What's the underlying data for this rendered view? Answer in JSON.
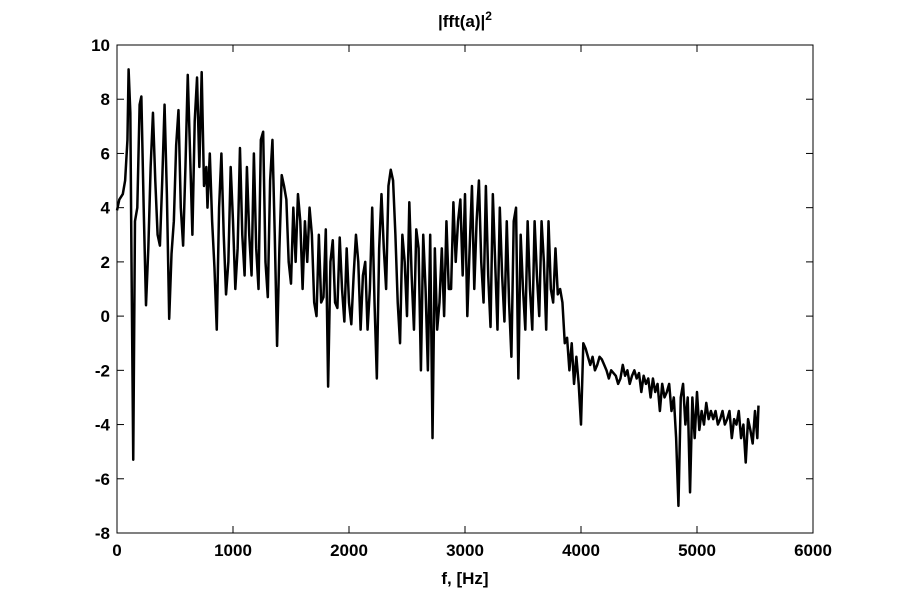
{
  "chart_data": {
    "type": "line",
    "title": "|fft(a)|",
    "title_superscript": "2",
    "x_label": "f, [Hz]",
    "color": "#000000",
    "xlim": [
      0,
      6000
    ],
    "xticks": [
      0,
      1000,
      2000,
      3000,
      4000,
      5000,
      6000
    ],
    "ylim": [
      -8,
      10
    ],
    "yticks": [
      -8,
      -6,
      -4,
      -2,
      0,
      2,
      4,
      6,
      8,
      10
    ],
    "grid": false,
    "x": [
      0,
      20,
      50,
      70,
      90,
      100,
      115,
      125,
      140,
      155,
      175,
      195,
      210,
      230,
      250,
      270,
      290,
      310,
      330,
      350,
      370,
      390,
      410,
      430,
      450,
      470,
      490,
      510,
      530,
      550,
      570,
      590,
      610,
      630,
      650,
      670,
      690,
      710,
      730,
      750,
      770,
      780,
      800,
      820,
      840,
      860,
      880,
      900,
      920,
      940,
      960,
      980,
      1000,
      1020,
      1040,
      1060,
      1080,
      1100,
      1120,
      1140,
      1160,
      1180,
      1200,
      1220,
      1240,
      1260,
      1280,
      1300,
      1320,
      1340,
      1360,
      1380,
      1400,
      1420,
      1440,
      1460,
      1480,
      1500,
      1520,
      1540,
      1560,
      1580,
      1600,
      1620,
      1640,
      1660,
      1680,
      1700,
      1720,
      1740,
      1760,
      1780,
      1800,
      1820,
      1840,
      1860,
      1880,
      1900,
      1920,
      1940,
      1960,
      1980,
      2000,
      2020,
      2040,
      2060,
      2080,
      2100,
      2120,
      2140,
      2160,
      2180,
      2200,
      2220,
      2240,
      2260,
      2280,
      2300,
      2320,
      2340,
      2360,
      2380,
      2400,
      2420,
      2440,
      2460,
      2480,
      2500,
      2520,
      2540,
      2560,
      2580,
      2600,
      2620,
      2640,
      2660,
      2680,
      2700,
      2720,
      2740,
      2760,
      2780,
      2800,
      2820,
      2840,
      2860,
      2880,
      2900,
      2920,
      2940,
      2960,
      2980,
      3000,
      3020,
      3040,
      3060,
      3080,
      3100,
      3120,
      3140,
      3160,
      3180,
      3200,
      3220,
      3240,
      3260,
      3280,
      3300,
      3320,
      3340,
      3360,
      3380,
      3400,
      3420,
      3440,
      3460,
      3480,
      3500,
      3520,
      3540,
      3560,
      3580,
      3600,
      3620,
      3640,
      3660,
      3680,
      3700,
      3720,
      3740,
      3760,
      3780,
      3800,
      3820,
      3840,
      3860,
      3880,
      3900,
      3920,
      3940,
      3960,
      3980,
      4000,
      4020,
      4040,
      4060,
      4080,
      4100,
      4120,
      4140,
      4160,
      4180,
      4200,
      4220,
      4240,
      4260,
      4280,
      4300,
      4320,
      4340,
      4360,
      4380,
      4400,
      4420,
      4440,
      4460,
      4480,
      4500,
      4520,
      4540,
      4560,
      4580,
      4600,
      4620,
      4640,
      4660,
      4680,
      4700,
      4720,
      4740,
      4760,
      4780,
      4800,
      4820,
      4840,
      4860,
      4880,
      4900,
      4920,
      4940,
      4960,
      4980,
      5000,
      5020,
      5040,
      5060,
      5080,
      5100,
      5120,
      5140,
      5160,
      5180,
      5200,
      5220,
      5240,
      5260,
      5280,
      5300,
      5320,
      5340,
      5360,
      5380,
      5400,
      5420,
      5440,
      5460,
      5480,
      5500,
      5520,
      5530
    ],
    "values": [
      3.9,
      4.3,
      4.5,
      5.0,
      6.5,
      9.1,
      7.5,
      2.0,
      -5.3,
      3.5,
      4.0,
      7.8,
      8.1,
      4.0,
      0.4,
      2.5,
      5.5,
      7.5,
      5.0,
      3.0,
      2.6,
      5.0,
      7.8,
      4.5,
      -0.1,
      2.3,
      3.5,
      6.3,
      7.6,
      4.0,
      2.6,
      5.5,
      8.9,
      6.0,
      3.0,
      7.2,
      8.8,
      5.5,
      9.0,
      4.8,
      5.5,
      4.0,
      6.0,
      3.5,
      1.8,
      -0.5,
      4.0,
      6.0,
      3.0,
      0.8,
      2.0,
      5.5,
      3.5,
      1.0,
      2.5,
      6.2,
      3.0,
      1.5,
      5.5,
      3.0,
      1.5,
      6.0,
      2.5,
      1.0,
      6.5,
      6.8,
      2.0,
      0.7,
      5.0,
      6.5,
      3.0,
      -1.1,
      2.5,
      5.2,
      4.8,
      4.3,
      2.0,
      1.2,
      4.0,
      2.0,
      4.5,
      3.5,
      1.0,
      3.5,
      2.0,
      4.0,
      3.0,
      0.5,
      0.0,
      3.0,
      0.5,
      0.7,
      3.2,
      -2.6,
      2.0,
      2.8,
      0.5,
      0.3,
      2.9,
      1.0,
      -0.2,
      2.5,
      0.5,
      -0.3,
      1.5,
      3.0,
      2.0,
      -0.5,
      1.5,
      2.0,
      -0.5,
      1.0,
      4.0,
      0.5,
      -2.3,
      2.5,
      4.5,
      2.5,
      1.0,
      4.8,
      5.4,
      5.0,
      3.0,
      0.5,
      -1.0,
      3.0,
      2.0,
      0.0,
      4.2,
      1.5,
      -0.5,
      3.2,
      2.5,
      -2.0,
      3.0,
      1.0,
      -2.0,
      3.0,
      -4.5,
      2.5,
      -0.5,
      0.5,
      2.5,
      0.0,
      3.5,
      1.0,
      1.0,
      4.2,
      2.0,
      3.5,
      4.3,
      1.5,
      4.5,
      0.0,
      2.5,
      4.8,
      1.0,
      3.5,
      5.0,
      2.0,
      0.5,
      4.8,
      1.5,
      -0.4,
      4.5,
      2.0,
      -0.5,
      4.0,
      1.5,
      -0.2,
      3.5,
      0.5,
      -1.5,
      3.5,
      4.0,
      -2.3,
      3.0,
      1.0,
      -0.5,
      3.5,
      1.0,
      -0.5,
      3.5,
      1.5,
      0.0,
      3.5,
      2.0,
      -0.5,
      3.5,
      1.0,
      0.5,
      2.5,
      0.8,
      1.0,
      0.5,
      -1.0,
      -0.8,
      -2.0,
      -1.0,
      -2.5,
      -1.5,
      -2.5,
      -4.0,
      -1.0,
      -1.2,
      -1.5,
      -1.8,
      -1.5,
      -2.0,
      -1.8,
      -1.5,
      -1.6,
      -1.8,
      -2.0,
      -2.3,
      -2.0,
      -2.1,
      -2.2,
      -2.5,
      -2.3,
      -1.8,
      -2.2,
      -2.0,
      -2.5,
      -2.2,
      -2.0,
      -2.3,
      -2.1,
      -2.8,
      -2.2,
      -2.5,
      -2.3,
      -3.0,
      -2.3,
      -2.8,
      -2.5,
      -3.5,
      -2.5,
      -3.0,
      -2.8,
      -2.5,
      -3.5,
      -3.0,
      -4.5,
      -7.0,
      -3.0,
      -2.5,
      -4.0,
      -3.0,
      -6.5,
      -3.0,
      -4.5,
      -2.8,
      -4.2,
      -3.5,
      -4.0,
      -3.2,
      -3.8,
      -3.5,
      -3.8,
      -3.5,
      -4.0,
      -3.8,
      -3.5,
      -4.0,
      -3.8,
      -3.5,
      -4.5,
      -3.8,
      -4.0,
      -3.5,
      -4.5,
      -4.0,
      -5.4,
      -3.8,
      -4.2,
      -4.7,
      -3.5,
      -4.5,
      -3.3
    ]
  }
}
